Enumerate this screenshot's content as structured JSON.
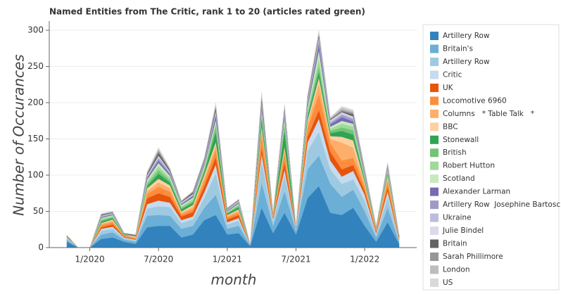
{
  "chart_data": {
    "type": "stacked_area",
    "title": "Named Entities from The Critic, rank 1 to 20 (articles rated green)",
    "x_label": "month",
    "y_label": "Number of Occurances",
    "x": [
      "2019-11",
      "2019-12",
      "2020-01",
      "2020-02",
      "2020-03",
      "2020-04",
      "2020-05",
      "2020-06",
      "2020-07",
      "2020-08",
      "2020-09",
      "2020-10",
      "2020-11",
      "2020-12",
      "2021-01",
      "2021-02",
      "2021-03",
      "2021-04",
      "2021-05",
      "2021-06",
      "2021-07",
      "2021-08",
      "2021-09",
      "2021-10",
      "2021-11",
      "2021-12",
      "2022-01",
      "2022-02",
      "2022-03",
      "2022-04"
    ],
    "xticks": [
      {
        "value": "2020-01",
        "label": "1/2020"
      },
      {
        "value": "2020-07",
        "label": "7/2020"
      },
      {
        "value": "2021-01",
        "label": "1/2021"
      },
      {
        "value": "2021-07",
        "label": "7/2021"
      },
      {
        "value": "2022-01",
        "label": "1/2022"
      }
    ],
    "ylim": [
      0,
      300
    ],
    "yticks": [
      0,
      50,
      100,
      150,
      200,
      250,
      300
    ],
    "grid": true,
    "series": [
      {
        "name": "Artillery Row",
        "color": "#3182bd",
        "values": [
          8,
          0,
          0,
          12,
          14,
          8,
          5,
          28,
          30,
          30,
          14,
          18,
          38,
          45,
          18,
          20,
          2,
          55,
          20,
          48,
          18,
          68,
          85,
          48,
          45,
          55,
          30,
          8,
          35,
          5
        ]
      },
      {
        "name": "Britain's",
        "color": "#6baed6",
        "values": [
          3,
          0,
          0,
          6,
          7,
          3,
          3,
          16,
          15,
          14,
          12,
          12,
          17,
          28,
          8,
          10,
          1,
          35,
          10,
          30,
          5,
          40,
          42,
          40,
          25,
          25,
          20,
          6,
          20,
          3
        ]
      },
      {
        "name": "Artillery Row",
        "color": "#9ecae1",
        "values": [
          2,
          0,
          0,
          5,
          5,
          2,
          2,
          10,
          12,
          12,
          8,
          9,
          14,
          30,
          6,
          7,
          1,
          30,
          7,
          22,
          3,
          25,
          33,
          20,
          18,
          14,
          15,
          4,
          15,
          2
        ]
      },
      {
        "name": "Critic",
        "color": "#c6dbef",
        "values": [
          1,
          0,
          0,
          3,
          3,
          1,
          1,
          6,
          8,
          6,
          4,
          4,
          8,
          12,
          3,
          4,
          0,
          10,
          3,
          8,
          1,
          12,
          18,
          12,
          10,
          12,
          8,
          2,
          8,
          1
        ]
      },
      {
        "name": "UK",
        "color": "#e6550d",
        "values": [
          1,
          0,
          0,
          2,
          3,
          1,
          1,
          8,
          10,
          8,
          5,
          6,
          8,
          10,
          4,
          4,
          0,
          8,
          2,
          10,
          1,
          8,
          12,
          12,
          10,
          8,
          5,
          2,
          6,
          1
        ]
      },
      {
        "name": "Locomotive 6960",
        "color": "#fd8d3c",
        "values": [
          0,
          0,
          0,
          3,
          3,
          1,
          1,
          6,
          9,
          7,
          3,
          4,
          7,
          10,
          3,
          3,
          0,
          18,
          2,
          12,
          1,
          12,
          22,
          12,
          12,
          10,
          6,
          2,
          8,
          1
        ]
      },
      {
        "name": "Columns   * Table Talk   *",
        "color": "#fdae6b",
        "values": [
          0,
          0,
          0,
          2,
          2,
          1,
          1,
          4,
          6,
          5,
          2,
          3,
          5,
          6,
          2,
          3,
          0,
          8,
          1,
          6,
          0,
          6,
          15,
          6,
          25,
          14,
          4,
          1,
          4,
          1
        ]
      },
      {
        "name": "BBC",
        "color": "#fdd0a2",
        "values": [
          0,
          0,
          0,
          1,
          2,
          0,
          1,
          4,
          5,
          4,
          2,
          3,
          4,
          5,
          1,
          2,
          0,
          5,
          1,
          4,
          0,
          5,
          8,
          4,
          8,
          10,
          3,
          1,
          4,
          0
        ]
      },
      {
        "name": "Stonewall",
        "color": "#31a354",
        "values": [
          0,
          0,
          0,
          2,
          2,
          1,
          0,
          3,
          7,
          4,
          3,
          3,
          4,
          14,
          2,
          3,
          0,
          10,
          1,
          22,
          0,
          5,
          8,
          4,
          8,
          8,
          3,
          1,
          3,
          0
        ]
      },
      {
        "name": "British",
        "color": "#74c476",
        "values": [
          0,
          0,
          0,
          2,
          1,
          0,
          0,
          3,
          5,
          3,
          2,
          2,
          3,
          8,
          1,
          2,
          0,
          4,
          0,
          8,
          0,
          4,
          8,
          3,
          5,
          6,
          2,
          0,
          2,
          0
        ]
      },
      {
        "name": "Robert Hutton",
        "color": "#a1d99b",
        "values": [
          1,
          0,
          0,
          2,
          2,
          1,
          1,
          3,
          5,
          3,
          2,
          3,
          3,
          5,
          1,
          2,
          0,
          4,
          1,
          5,
          0,
          4,
          10,
          3,
          5,
          5,
          2,
          1,
          2,
          1
        ]
      },
      {
        "name": "Scotland",
        "color": "#c7e9c0",
        "values": [
          0,
          0,
          0,
          1,
          1,
          0,
          0,
          3,
          5,
          3,
          2,
          2,
          3,
          4,
          1,
          1,
          0,
          4,
          0,
          4,
          0,
          4,
          12,
          3,
          4,
          4,
          2,
          0,
          2,
          0
        ]
      },
      {
        "name": "Alexander Larman",
        "color": "#756bb1",
        "values": [
          0,
          0,
          0,
          1,
          1,
          0,
          0,
          2,
          3,
          2,
          1,
          2,
          2,
          5,
          1,
          1,
          0,
          4,
          0,
          4,
          0,
          3,
          8,
          3,
          5,
          3,
          2,
          0,
          2,
          0
        ]
      },
      {
        "name": "Artillery Row  Josephine Bartosch",
        "color": "#9e9ac8",
        "values": [
          0,
          0,
          0,
          1,
          1,
          0,
          0,
          2,
          3,
          2,
          1,
          1,
          2,
          3,
          1,
          1,
          0,
          3,
          0,
          3,
          0,
          3,
          5,
          2,
          3,
          3,
          2,
          0,
          1,
          0
        ]
      },
      {
        "name": "Ukraine",
        "color": "#bcbddc",
        "values": [
          0,
          0,
          0,
          0,
          0,
          0,
          0,
          1,
          2,
          1,
          1,
          1,
          1,
          2,
          0,
          1,
          0,
          2,
          0,
          2,
          0,
          2,
          3,
          2,
          2,
          2,
          1,
          0,
          1,
          0
        ]
      },
      {
        "name": "Julie Bindel",
        "color": "#dadaeb",
        "values": [
          0,
          0,
          0,
          1,
          1,
          0,
          0,
          1,
          2,
          1,
          1,
          1,
          1,
          2,
          1,
          1,
          0,
          2,
          0,
          2,
          0,
          2,
          2,
          2,
          2,
          2,
          1,
          0,
          1,
          0
        ]
      },
      {
        "name": "Britain",
        "color": "#636363",
        "values": [
          1,
          0,
          0,
          1,
          1,
          1,
          1,
          2,
          4,
          2,
          1,
          2,
          2,
          4,
          1,
          1,
          1,
          5,
          1,
          3,
          1,
          3,
          3,
          1,
          1,
          3,
          1,
          1,
          1,
          1
        ]
      },
      {
        "name": "Sarah Phillimore",
        "color": "#969696",
        "values": [
          0,
          0,
          0,
          1,
          0,
          0,
          1,
          1,
          3,
          1,
          0,
          1,
          1,
          3,
          0,
          0,
          0,
          3,
          0,
          2,
          0,
          2,
          2,
          1,
          2,
          2,
          1,
          0,
          1,
          1
        ]
      },
      {
        "name": "London",
        "color": "#bdbdbd",
        "values": [
          0,
          0,
          0,
          1,
          1,
          0,
          0,
          1,
          2,
          1,
          1,
          1,
          1,
          2,
          1,
          1,
          0,
          3,
          0,
          2,
          0,
          1,
          2,
          1,
          3,
          2,
          1,
          1,
          1,
          1
        ]
      },
      {
        "name": "US",
        "color": "#d9d9d9",
        "values": [
          0,
          0,
          0,
          0,
          0,
          0,
          0,
          1,
          2,
          1,
          0,
          0,
          1,
          2,
          0,
          0,
          0,
          2,
          0,
          1,
          0,
          1,
          2,
          1,
          2,
          2,
          1,
          0,
          1,
          0
        ]
      }
    ]
  }
}
